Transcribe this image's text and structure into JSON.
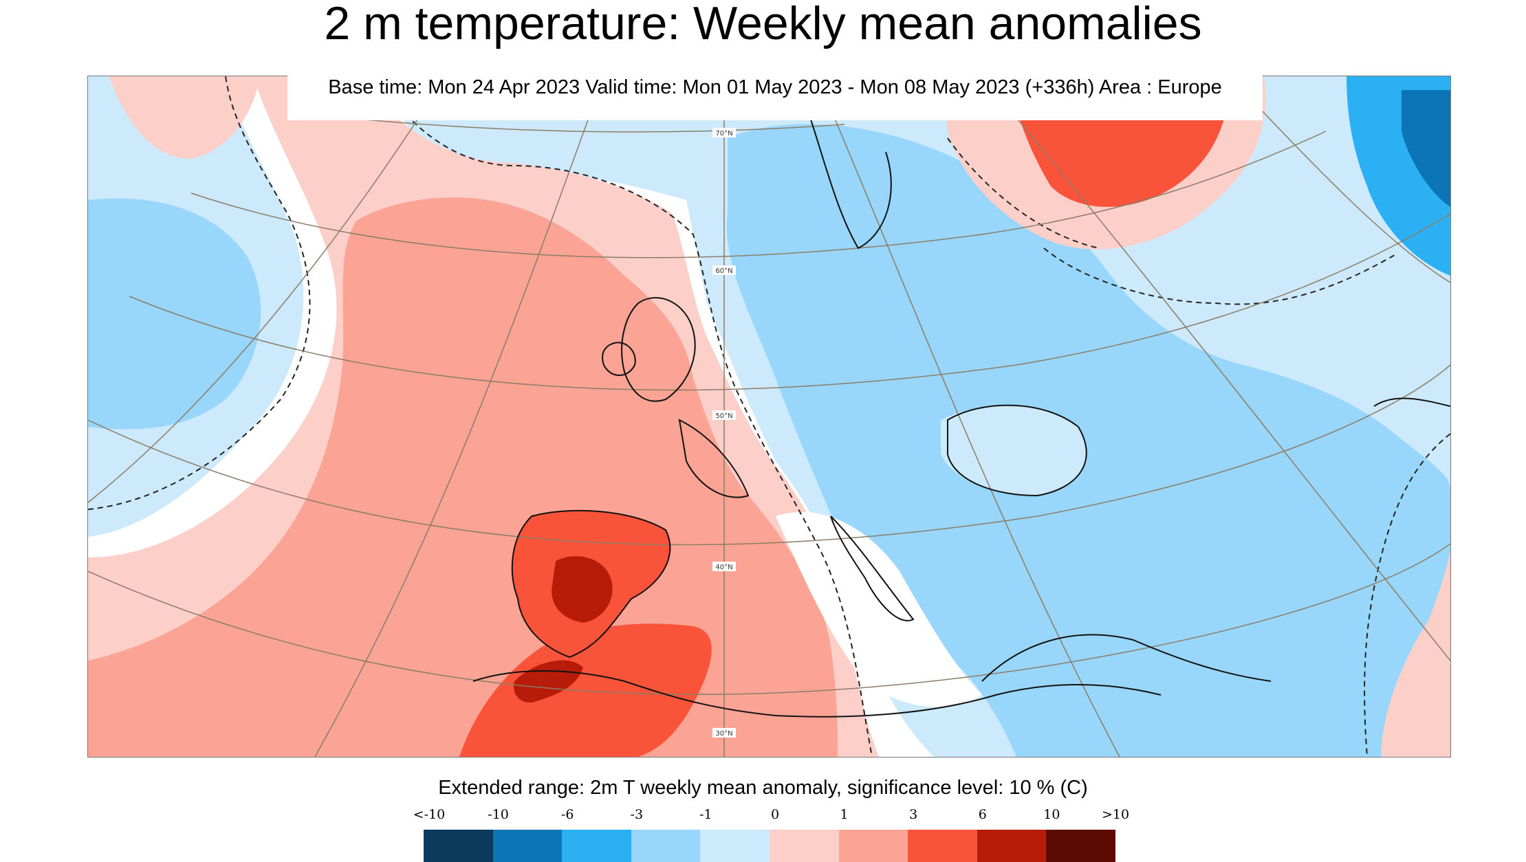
{
  "title": "2 m temperature: Weekly mean anomalies",
  "info": "Base time: Mon 24 Apr 2023 Valid time: Mon 01 May 2023 - Mon 08 May 2023 (+336h) Area : Europe",
  "map": {
    "latitude_labels": [
      "70°N",
      "60°N",
      "50°N",
      "40°N",
      "30°N"
    ],
    "colors": {
      "land_border": "#222222",
      "graticule": "#8a7c66",
      "significance_contour": "#222222"
    }
  },
  "legend": {
    "title": "Extended range: 2m T weekly mean anomaly, significance level: 10 % (C)",
    "labels": [
      "<-10",
      "-10",
      "-6",
      "-3",
      "-1",
      "0",
      "1",
      "3",
      "6",
      "10",
      ">10"
    ],
    "colors": [
      "#0a3a5c",
      "#0b75b6",
      "#2cb0f4",
      "#98d6fb",
      "#cdeafc",
      "#fdcfc9",
      "#fba394",
      "#f9543a",
      "#b71c0a",
      "#5c0a03"
    ]
  }
}
